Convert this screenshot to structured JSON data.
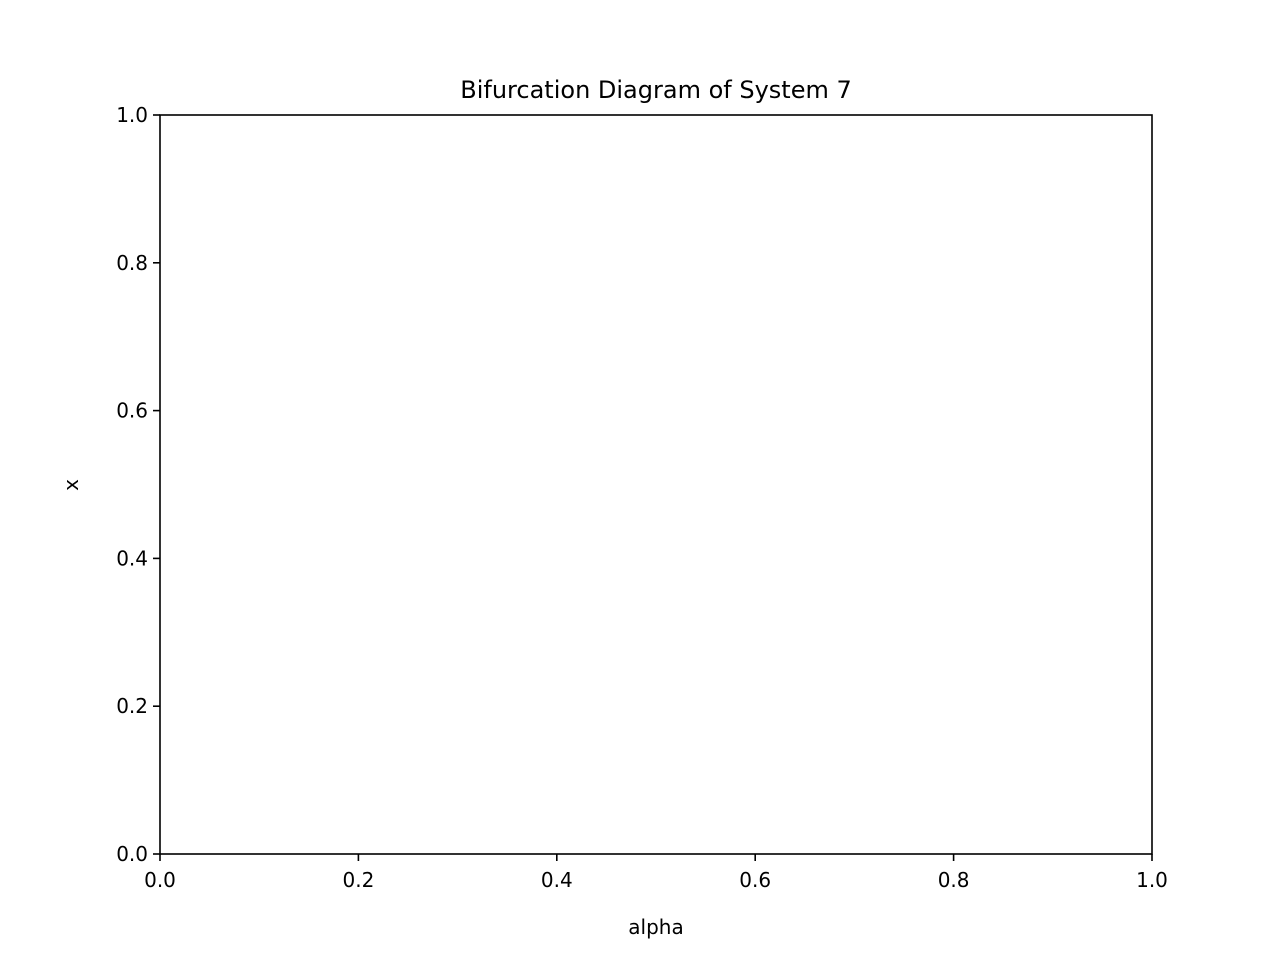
{
  "chart_data": {
    "type": "scatter",
    "title": "Bifurcation Diagram of System 7",
    "xlabel": "alpha",
    "ylabel": "x",
    "xlim": [
      0.0,
      1.0
    ],
    "ylim": [
      0.0,
      1.0
    ],
    "xticks": [
      "0.0",
      "0.2",
      "0.4",
      "0.6",
      "0.8",
      "1.0"
    ],
    "yticks": [
      "0.0",
      "0.2",
      "0.4",
      "0.6",
      "0.8",
      "1.0"
    ],
    "grid": false,
    "series": [],
    "colors": {
      "axes": "#000000",
      "background": "#ffffff"
    }
  }
}
